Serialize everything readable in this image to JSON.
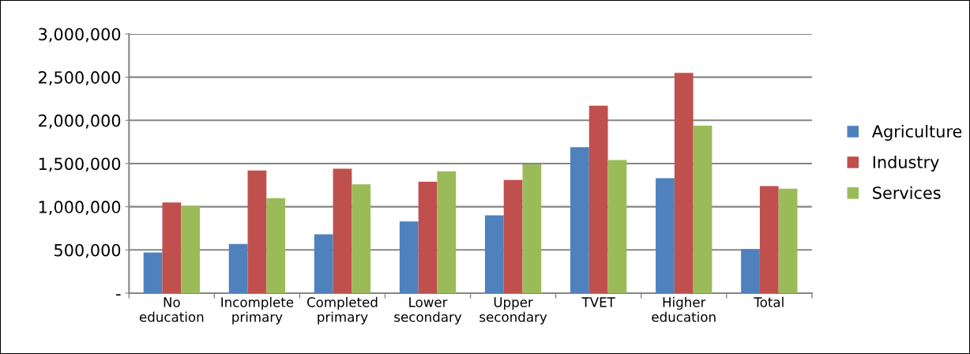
{
  "chart_data": {
    "type": "bar",
    "categories": [
      "No\neducation",
      "Incomplete\nprimary",
      "Completed\nprimary",
      "Lower\nsecondary",
      "Upper\nsecondary",
      "TVET",
      "Higher\neducation",
      "Total"
    ],
    "series": [
      {
        "name": "Agriculture",
        "color": "#4f81bd",
        "values": [
          470000,
          570000,
          680000,
          830000,
          900000,
          1690000,
          1330000,
          510000
        ]
      },
      {
        "name": "Industry",
        "color": "#c0504d",
        "values": [
          1050000,
          1420000,
          1440000,
          1290000,
          1310000,
          2170000,
          2550000,
          1240000
        ]
      },
      {
        "name": "Services",
        "color": "#9bbb59",
        "values": [
          1010000,
          1100000,
          1260000,
          1410000,
          1490000,
          1540000,
          1940000,
          1210000
        ]
      }
    ],
    "ylim": [
      0,
      3000000
    ],
    "yticks": [
      {
        "value": 0,
        "label": "-"
      },
      {
        "value": 500000,
        "label": "500,000"
      },
      {
        "value": 1000000,
        "label": "1,000,000"
      },
      {
        "value": 1500000,
        "label": "1,500,000"
      },
      {
        "value": 2000000,
        "label": "2,000,000"
      },
      {
        "value": 2500000,
        "label": "2,500,000"
      },
      {
        "value": 3000000,
        "label": "3,000,000"
      }
    ],
    "grid": "y",
    "legend": "right"
  }
}
